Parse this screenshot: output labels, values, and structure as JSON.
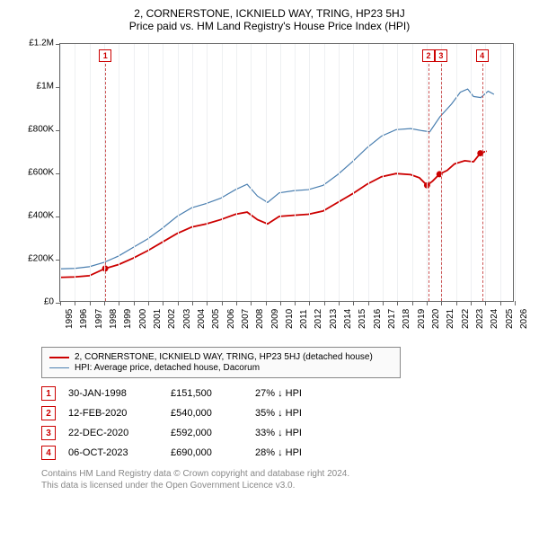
{
  "title": "2, CORNERSTONE, ICKNIELD WAY, TRING, HP23 5HJ",
  "subtitle": "Price paid vs. HM Land Registry's House Price Index (HPI)",
  "chart": {
    "type": "line",
    "background_color": "#ffffff",
    "grid_color": "#eef0f2",
    "axis_color": "#666666",
    "ylim": [
      0,
      1200000
    ],
    "ytick_step": 200000,
    "ytick_labels": [
      "£0",
      "£200K",
      "£400K",
      "£600K",
      "£800K",
      "£1M",
      "£1.2M"
    ],
    "xlim": [
      1995,
      2026
    ],
    "xtick_step": 1,
    "xtick_labels": [
      "1995",
      "1996",
      "1997",
      "1998",
      "1999",
      "2000",
      "2001",
      "2002",
      "2003",
      "2004",
      "2005",
      "2006",
      "2007",
      "2008",
      "2009",
      "2010",
      "2011",
      "2012",
      "2013",
      "2014",
      "2015",
      "2016",
      "2017",
      "2018",
      "2019",
      "2020",
      "2021",
      "2022",
      "2023",
      "2024",
      "2025",
      "2026"
    ],
    "label_fontsize": 10,
    "series": [
      {
        "name": "property",
        "legend_label": "2, CORNERSTONE, ICKNIELD WAY, TRING, HP23 5HJ (detached house)",
        "color": "#cc0000",
        "line_width": 1.8,
        "points": [
          [
            1995.0,
            110000
          ],
          [
            1996.0,
            112000
          ],
          [
            1997.0,
            118000
          ],
          [
            1998.08,
            151500
          ],
          [
            1999.0,
            170000
          ],
          [
            2000.0,
            200000
          ],
          [
            2001.0,
            235000
          ],
          [
            2002.0,
            275000
          ],
          [
            2003.0,
            315000
          ],
          [
            2004.0,
            345000
          ],
          [
            2005.0,
            360000
          ],
          [
            2006.0,
            380000
          ],
          [
            2007.0,
            405000
          ],
          [
            2007.8,
            415000
          ],
          [
            2008.5,
            380000
          ],
          [
            2009.2,
            360000
          ],
          [
            2010.0,
            395000
          ],
          [
            2011.0,
            400000
          ],
          [
            2012.0,
            405000
          ],
          [
            2013.0,
            420000
          ],
          [
            2014.0,
            460000
          ],
          [
            2015.0,
            500000
          ],
          [
            2016.0,
            545000
          ],
          [
            2017.0,
            580000
          ],
          [
            2018.0,
            595000
          ],
          [
            2019.0,
            590000
          ],
          [
            2019.6,
            575000
          ],
          [
            2020.12,
            540000
          ],
          [
            2020.5,
            560000
          ],
          [
            2020.97,
            592000
          ],
          [
            2021.5,
            610000
          ],
          [
            2022.0,
            640000
          ],
          [
            2022.7,
            655000
          ],
          [
            2023.3,
            650000
          ],
          [
            2023.77,
            690000
          ],
          [
            2024.2,
            700000
          ]
        ],
        "markers": [
          {
            "x": 1998.08,
            "y": 151500
          },
          {
            "x": 2020.12,
            "y": 540000
          },
          {
            "x": 2020.97,
            "y": 592000
          },
          {
            "x": 2023.77,
            "y": 690000
          }
        ]
      },
      {
        "name": "hpi",
        "legend_label": "HPI: Average price, detached house, Dacorum",
        "color": "#4a7fb0",
        "line_width": 1.2,
        "points": [
          [
            1995.0,
            150000
          ],
          [
            1996.0,
            152000
          ],
          [
            1997.0,
            160000
          ],
          [
            1998.0,
            180000
          ],
          [
            1999.0,
            210000
          ],
          [
            2000.0,
            250000
          ],
          [
            2001.0,
            290000
          ],
          [
            2002.0,
            340000
          ],
          [
            2003.0,
            395000
          ],
          [
            2004.0,
            435000
          ],
          [
            2005.0,
            455000
          ],
          [
            2006.0,
            480000
          ],
          [
            2007.0,
            520000
          ],
          [
            2007.8,
            545000
          ],
          [
            2008.5,
            490000
          ],
          [
            2009.2,
            460000
          ],
          [
            2010.0,
            505000
          ],
          [
            2011.0,
            515000
          ],
          [
            2012.0,
            520000
          ],
          [
            2013.0,
            540000
          ],
          [
            2014.0,
            590000
          ],
          [
            2015.0,
            650000
          ],
          [
            2016.0,
            715000
          ],
          [
            2017.0,
            770000
          ],
          [
            2018.0,
            800000
          ],
          [
            2019.0,
            805000
          ],
          [
            2019.8,
            795000
          ],
          [
            2020.3,
            790000
          ],
          [
            2021.0,
            860000
          ],
          [
            2021.8,
            920000
          ],
          [
            2022.4,
            975000
          ],
          [
            2022.9,
            990000
          ],
          [
            2023.3,
            955000
          ],
          [
            2023.8,
            950000
          ],
          [
            2024.3,
            980000
          ],
          [
            2024.7,
            965000
          ]
        ]
      }
    ],
    "event_markers": [
      {
        "n": "1",
        "x": 1998.08
      },
      {
        "n": "2",
        "x": 2020.12
      },
      {
        "n": "3",
        "x": 2020.97
      },
      {
        "n": "4",
        "x": 2023.77
      }
    ],
    "marker_box_color": "#cc0000"
  },
  "legend": {
    "border_color": "#888888",
    "background_color": "#fafafa"
  },
  "sales": [
    {
      "n": "1",
      "date": "30-JAN-1998",
      "price": "£151,500",
      "diff": "27% ↓ HPI"
    },
    {
      "n": "2",
      "date": "12-FEB-2020",
      "price": "£540,000",
      "diff": "35% ↓ HPI"
    },
    {
      "n": "3",
      "date": "22-DEC-2020",
      "price": "£592,000",
      "diff": "33% ↓ HPI"
    },
    {
      "n": "4",
      "date": "06-OCT-2023",
      "price": "£690,000",
      "diff": "28% ↓ HPI"
    }
  ],
  "footnote_line1": "Contains HM Land Registry data © Crown copyright and database right 2024.",
  "footnote_line2": "This data is licensed under the Open Government Licence v3.0."
}
